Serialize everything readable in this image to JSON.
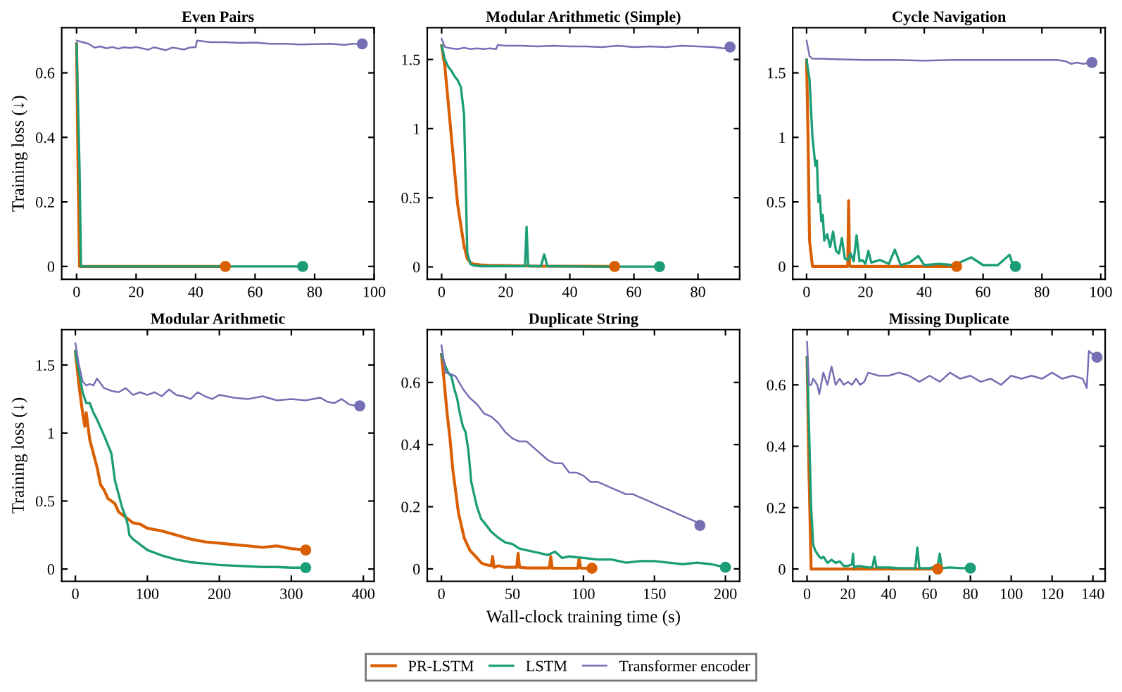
{
  "chart_data": [
    {
      "type": "line",
      "title": "Even Pairs",
      "ylabel": "Training loss (↓)",
      "legend": "bottom",
      "xlim": [
        -5,
        100
      ],
      "xticks": [
        0,
        20,
        40,
        60,
        80,
        100
      ],
      "ylim": [
        -0.04,
        0.74
      ],
      "yticks": [
        0,
        0.2,
        0.4,
        0.6
      ],
      "grid": false,
      "marker": "none",
      "line_style": "solid",
      "series": [
        {
          "name": "PR-LSTM",
          "color": "#d95f02",
          "x": [
            0,
            0.5,
            1,
            50
          ],
          "values": [
            0.69,
            0.3,
            0,
            0
          ]
        },
        {
          "name": "LSTM",
          "color": "#1b9e77",
          "x": [
            0,
            1,
            1.5,
            76
          ],
          "values": [
            0.69,
            0.3,
            0,
            0
          ]
        },
        {
          "name": "Transformer encoder",
          "color": "#7570b3",
          "x": [
            0,
            2,
            4,
            6,
            8,
            10,
            12,
            14,
            16,
            18,
            20,
            22,
            24,
            26,
            28,
            30,
            32,
            34,
            36,
            38,
            40,
            40.5,
            45,
            50,
            55,
            60,
            65,
            70,
            75,
            80,
            85,
            90,
            93,
            96
          ],
          "values": [
            0.7,
            0.695,
            0.69,
            0.678,
            0.682,
            0.676,
            0.68,
            0.675,
            0.679,
            0.677,
            0.68,
            0.676,
            0.672,
            0.679,
            0.675,
            0.67,
            0.678,
            0.676,
            0.672,
            0.678,
            0.68,
            0.7,
            0.695,
            0.695,
            0.693,
            0.694,
            0.69,
            0.69,
            0.688,
            0.689,
            0.69,
            0.687,
            0.69,
            0.69
          ]
        },
        {
          "type": "scatter",
          "marker": "circle",
          "x": [
            50,
            76,
            96
          ],
          "values": [
            0,
            0,
            0.69
          ],
          "colors": [
            "#d95f02",
            "#1b9e77",
            "#7570b3"
          ]
        }
      ]
    },
    {
      "type": "line",
      "title": "Modular Arithmetic (Simple)",
      "xlim": [
        -4.5,
        93
      ],
      "xticks": [
        0,
        20,
        40,
        60,
        80
      ],
      "ylim": [
        -0.09,
        1.73
      ],
      "yticks": [
        0,
        0.5,
        1,
        1.5
      ],
      "grid": false,
      "marker": "none",
      "line_style": "solid",
      "series": [
        {
          "color": "#d95f02",
          "x": [
            0,
            1,
            2,
            3,
            4,
            5,
            6,
            7,
            8,
            9,
            10,
            12,
            15,
            20,
            30,
            40,
            54
          ],
          "values": [
            1.6,
            1.45,
            1.2,
            0.95,
            0.7,
            0.45,
            0.3,
            0.15,
            0.06,
            0.03,
            0.02,
            0.015,
            0.01,
            0.01,
            0.005,
            0.005,
            0.003
          ]
        },
        {
          "color": "#1b9e77",
          "x": [
            0,
            1,
            2,
            3,
            4,
            5,
            6,
            7,
            7.5,
            8,
            9,
            10,
            12,
            15,
            20,
            26,
            26.5,
            27,
            31,
            32,
            33,
            40,
            50,
            60,
            68
          ],
          "values": [
            1.6,
            1.5,
            1.45,
            1.42,
            1.38,
            1.35,
            1.3,
            1.1,
            0.6,
            0.1,
            0.02,
            0.01,
            0.005,
            0.005,
            0.005,
            0.005,
            0.29,
            0.005,
            0.005,
            0.09,
            0.005,
            0.003,
            0.002,
            0.002,
            0.002
          ]
        },
        {
          "color": "#7570b3",
          "x": [
            0,
            1,
            3,
            5,
            7,
            9,
            11,
            13,
            15,
            17,
            17.5,
            20,
            25,
            30,
            35,
            40,
            45,
            50,
            55,
            60,
            65,
            70,
            75,
            80,
            85,
            88,
            90
          ],
          "values": [
            1.65,
            1.59,
            1.58,
            1.575,
            1.585,
            1.575,
            1.58,
            1.575,
            1.58,
            1.575,
            1.605,
            1.6,
            1.6,
            1.595,
            1.6,
            1.595,
            1.595,
            1.59,
            1.6,
            1.59,
            1.595,
            1.59,
            1.6,
            1.595,
            1.59,
            1.58,
            1.59
          ]
        },
        {
          "type": "scatter",
          "marker": "circle",
          "x": [
            54,
            68,
            90
          ],
          "values": [
            0.003,
            0.002,
            1.59
          ],
          "colors": [
            "#d95f02",
            "#1b9e77",
            "#7570b3"
          ]
        }
      ]
    },
    {
      "type": "line",
      "title": "Cycle Navigation",
      "xlim": [
        -4.7,
        101.5
      ],
      "xticks": [
        0,
        20,
        40,
        60,
        80,
        100
      ],
      "ylim": [
        -0.1,
        1.85
      ],
      "yticks": [
        0,
        0.5,
        1,
        1.5
      ],
      "grid": false,
      "marker": "none",
      "line_style": "solid",
      "series": [
        {
          "color": "#d95f02",
          "x": [
            0,
            0.5,
            1,
            2,
            14,
            14.3,
            14.6,
            15,
            51
          ],
          "values": [
            1.6,
            1.0,
            0.2,
            0,
            0,
            0.51,
            0.01,
            0,
            0
          ]
        },
        {
          "color": "#1b9e77",
          "x": [
            0,
            1,
            2,
            3,
            3.5,
            4,
            4.5,
            5,
            5.5,
            6,
            7,
            8,
            9,
            10,
            11,
            12,
            13,
            14,
            15,
            16,
            17,
            18,
            19,
            20,
            21,
            22,
            25,
            28,
            30,
            32,
            35,
            38,
            40,
            45,
            50,
            56,
            60,
            65,
            69,
            70,
            71
          ],
          "values": [
            1.6,
            1.45,
            1.0,
            0.78,
            0.82,
            0.5,
            0.55,
            0.35,
            0.4,
            0.2,
            0.25,
            0.15,
            0.27,
            0.12,
            0.1,
            0.22,
            0.06,
            0.05,
            0.1,
            0.04,
            0.24,
            0.04,
            0.05,
            0.02,
            0.12,
            0.03,
            0.05,
            0.02,
            0.13,
            0.01,
            0.03,
            0.08,
            0.01,
            0.02,
            0.01,
            0.07,
            0.01,
            0.01,
            0.09,
            0.02,
            0.0
          ]
        },
        {
          "color": "#7570b3",
          "x": [
            0,
            1,
            2,
            5,
            10,
            20,
            30,
            40,
            50,
            60,
            70,
            80,
            85,
            88,
            90,
            92,
            94,
            97
          ],
          "values": [
            1.75,
            1.63,
            1.61,
            1.61,
            1.605,
            1.6,
            1.6,
            1.595,
            1.6,
            1.6,
            1.6,
            1.6,
            1.6,
            1.59,
            1.57,
            1.58,
            1.57,
            1.58
          ]
        },
        {
          "type": "scatter",
          "marker": "circle",
          "x": [
            51,
            71,
            97
          ],
          "values": [
            0,
            0.0,
            1.58
          ],
          "colors": [
            "#d95f02",
            "#1b9e77",
            "#7570b3"
          ]
        }
      ]
    },
    {
      "type": "line",
      "title": "Modular Arithmetic",
      "ylabel": "Training loss (↓)",
      "xlim": [
        -19,
        415
      ],
      "xticks": [
        0,
        100,
        200,
        300,
        400
      ],
      "ylim": [
        -0.09,
        1.76
      ],
      "yticks": [
        0,
        0.5,
        1,
        1.5
      ],
      "grid": false,
      "marker": "none",
      "line_style": "solid",
      "series": [
        {
          "color": "#d95f02",
          "x": [
            0,
            5,
            10,
            13,
            15,
            20,
            25,
            30,
            35,
            40,
            45,
            50,
            55,
            60,
            70,
            80,
            90,
            100,
            120,
            140,
            160,
            180,
            200,
            220,
            240,
            260,
            280,
            300,
            320
          ],
          "values": [
            1.6,
            1.35,
            1.15,
            1.05,
            1.15,
            0.95,
            0.85,
            0.75,
            0.62,
            0.58,
            0.52,
            0.5,
            0.48,
            0.42,
            0.38,
            0.34,
            0.33,
            0.3,
            0.28,
            0.25,
            0.22,
            0.2,
            0.19,
            0.18,
            0.17,
            0.16,
            0.17,
            0.15,
            0.14
          ]
        },
        {
          "color": "#1b9e77",
          "x": [
            0,
            5,
            10,
            15,
            20,
            25,
            30,
            40,
            50,
            55,
            60,
            65,
            70,
            73,
            75,
            80,
            90,
            100,
            120,
            140,
            160,
            180,
            200,
            220,
            240,
            260,
            280,
            300,
            320
          ],
          "values": [
            1.6,
            1.45,
            1.3,
            1.22,
            1.22,
            1.15,
            1.1,
            0.98,
            0.85,
            0.65,
            0.55,
            0.45,
            0.38,
            0.32,
            0.25,
            0.22,
            0.18,
            0.14,
            0.1,
            0.07,
            0.05,
            0.04,
            0.03,
            0.025,
            0.02,
            0.015,
            0.015,
            0.01,
            0.01
          ]
        },
        {
          "color": "#7570b3",
          "x": [
            0,
            5,
            10,
            15,
            20,
            25,
            30,
            40,
            50,
            60,
            70,
            80,
            90,
            100,
            110,
            120,
            130,
            140,
            150,
            160,
            170,
            180,
            190,
            200,
            220,
            240,
            260,
            280,
            300,
            320,
            340,
            350,
            360,
            370,
            380,
            390,
            395
          ],
          "values": [
            1.66,
            1.5,
            1.38,
            1.35,
            1.36,
            1.35,
            1.4,
            1.33,
            1.31,
            1.3,
            1.33,
            1.28,
            1.3,
            1.28,
            1.3,
            1.27,
            1.32,
            1.28,
            1.27,
            1.25,
            1.3,
            1.27,
            1.25,
            1.28,
            1.26,
            1.25,
            1.27,
            1.24,
            1.25,
            1.24,
            1.26,
            1.23,
            1.22,
            1.25,
            1.21,
            1.2,
            1.2
          ]
        },
        {
          "type": "scatter",
          "marker": "circle",
          "x": [
            320,
            320,
            395
          ],
          "values": [
            0.14,
            0.01,
            1.2
          ],
          "colors": [
            "#d95f02",
            "#1b9e77",
            "#7570b3"
          ]
        }
      ]
    },
    {
      "type": "line",
      "title": "Duplicate String",
      "xlabel": "Wall-clock training time (s)",
      "xlim": [
        -10,
        210
      ],
      "xticks": [
        0,
        50,
        100,
        150,
        200
      ],
      "ylim": [
        -0.04,
        0.77
      ],
      "yticks": [
        0,
        0.2,
        0.4,
        0.6
      ],
      "grid": false,
      "marker": "none",
      "line_style": "solid",
      "series": [
        {
          "color": "#d95f02",
          "x": [
            0,
            2,
            4,
            6,
            8,
            10,
            12,
            14,
            16,
            18,
            20,
            22,
            24,
            26,
            28,
            30,
            35,
            36,
            37,
            40,
            45,
            53,
            54,
            55,
            60,
            70,
            76,
            77,
            78,
            90,
            96,
            97,
            98,
            106
          ],
          "values": [
            0.69,
            0.6,
            0.5,
            0.42,
            0.32,
            0.25,
            0.18,
            0.14,
            0.1,
            0.08,
            0.06,
            0.05,
            0.04,
            0.03,
            0.02,
            0.015,
            0.01,
            0.04,
            0.005,
            0.01,
            0.005,
            0.005,
            0.05,
            0.005,
            0.003,
            0.003,
            0.003,
            0.04,
            0.002,
            0.002,
            0.002,
            0.035,
            0.002,
            0.002
          ]
        },
        {
          "color": "#1b9e77",
          "x": [
            0,
            3,
            5,
            7,
            9,
            11,
            13,
            15,
            17,
            19,
            21,
            23,
            25,
            28,
            30,
            35,
            40,
            45,
            50,
            55,
            60,
            65,
            70,
            75,
            80,
            85,
            90,
            100,
            110,
            120,
            130,
            140,
            150,
            160,
            170,
            180,
            190,
            200
          ],
          "values": [
            0.69,
            0.65,
            0.63,
            0.62,
            0.58,
            0.55,
            0.5,
            0.46,
            0.44,
            0.38,
            0.28,
            0.24,
            0.2,
            0.16,
            0.15,
            0.12,
            0.1,
            0.085,
            0.08,
            0.065,
            0.06,
            0.055,
            0.05,
            0.045,
            0.055,
            0.035,
            0.04,
            0.035,
            0.03,
            0.03,
            0.02,
            0.025,
            0.025,
            0.02,
            0.015,
            0.02,
            0.015,
            0.005
          ]
        },
        {
          "color": "#7570b3",
          "x": [
            0,
            3,
            5,
            10,
            15,
            20,
            25,
            30,
            35,
            40,
            45,
            50,
            55,
            60,
            65,
            70,
            75,
            80,
            85,
            90,
            95,
            100,
            105,
            110,
            115,
            120,
            125,
            130,
            135,
            140,
            145,
            150,
            155,
            160,
            165,
            170,
            175,
            180,
            182
          ],
          "values": [
            0.72,
            0.63,
            0.63,
            0.62,
            0.58,
            0.55,
            0.53,
            0.5,
            0.49,
            0.47,
            0.44,
            0.42,
            0.41,
            0.41,
            0.39,
            0.37,
            0.35,
            0.34,
            0.34,
            0.31,
            0.31,
            0.3,
            0.28,
            0.28,
            0.27,
            0.26,
            0.25,
            0.24,
            0.24,
            0.23,
            0.22,
            0.21,
            0.2,
            0.19,
            0.18,
            0.17,
            0.16,
            0.15,
            0.14
          ]
        },
        {
          "type": "scatter",
          "marker": "circle",
          "x": [
            106,
            200,
            182
          ],
          "values": [
            0.002,
            0.005,
            0.14
          ],
          "colors": [
            "#d95f02",
            "#1b9e77",
            "#7570b3"
          ]
        }
      ]
    },
    {
      "type": "line",
      "title": "Missing Duplicate",
      "xlim": [
        -7,
        146
      ],
      "xticks": [
        0,
        20,
        40,
        60,
        80,
        100,
        120,
        140
      ],
      "ylim": [
        -0.04,
        0.78
      ],
      "yticks": [
        0,
        0.2,
        0.4,
        0.6
      ],
      "grid": false,
      "marker": "none",
      "line_style": "solid",
      "series": [
        {
          "color": "#d95f02",
          "x": [
            0,
            1,
            2,
            64
          ],
          "values": [
            0.69,
            0.3,
            0,
            0
          ]
        },
        {
          "color": "#1b9e77",
          "x": [
            0,
            1,
            2,
            3,
            4,
            5,
            6,
            7,
            8,
            10,
            12,
            14,
            16,
            18,
            20,
            22,
            22.5,
            23,
            25,
            30,
            32,
            33,
            34,
            40,
            45,
            50,
            53,
            54,
            55,
            60,
            64,
            65,
            66,
            70,
            75,
            80
          ],
          "values": [
            0.69,
            0.45,
            0.2,
            0.08,
            0.06,
            0.05,
            0.04,
            0.035,
            0.04,
            0.02,
            0.03,
            0.02,
            0.025,
            0.01,
            0.01,
            0.015,
            0.05,
            0.005,
            0.01,
            0.005,
            0.005,
            0.04,
            0.005,
            0.005,
            0.003,
            0.003,
            0.003,
            0.07,
            0.003,
            0.003,
            0.01,
            0.05,
            0.003,
            0.005,
            0.003,
            0.003
          ]
        },
        {
          "color": "#7570b3",
          "x": [
            0,
            1,
            2,
            3,
            5,
            6,
            8,
            10,
            12,
            14,
            16,
            18,
            20,
            22,
            24,
            26,
            28,
            30,
            35,
            40,
            45,
            50,
            55,
            60,
            65,
            70,
            75,
            80,
            85,
            90,
            95,
            100,
            105,
            110,
            115,
            120,
            125,
            130,
            135,
            137,
            138,
            140,
            142
          ],
          "values": [
            0.74,
            0.6,
            0.6,
            0.62,
            0.6,
            0.57,
            0.64,
            0.6,
            0.66,
            0.6,
            0.62,
            0.6,
            0.61,
            0.6,
            0.62,
            0.6,
            0.61,
            0.64,
            0.63,
            0.63,
            0.64,
            0.63,
            0.61,
            0.63,
            0.61,
            0.64,
            0.62,
            0.63,
            0.61,
            0.62,
            0.6,
            0.63,
            0.62,
            0.63,
            0.62,
            0.64,
            0.62,
            0.63,
            0.62,
            0.59,
            0.71,
            0.7,
            0.69
          ]
        },
        {
          "type": "scatter",
          "marker": "circle",
          "x": [
            64,
            80,
            142
          ],
          "values": [
            0,
            0.003,
            0.69
          ],
          "colors": [
            "#d95f02",
            "#1b9e77",
            "#7570b3"
          ]
        }
      ]
    }
  ]
}
